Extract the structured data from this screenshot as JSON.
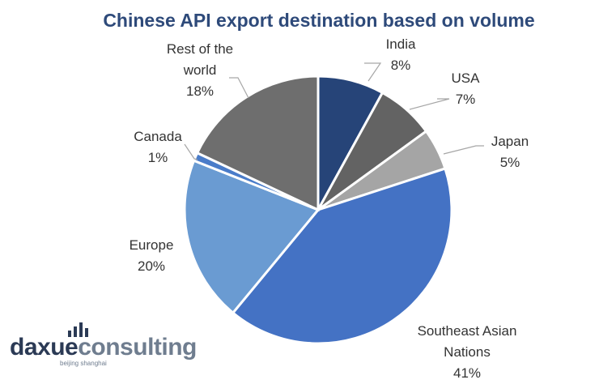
{
  "chart_data": {
    "type": "pie",
    "title": "Chinese API export destination based on volume",
    "slices": [
      {
        "label": [
          "India"
        ],
        "pct": "8%",
        "value": 8,
        "color": "#264478"
      },
      {
        "label": [
          "USA"
        ],
        "pct": "7%",
        "value": 7,
        "color": "#636363"
      },
      {
        "label": [
          "Japan"
        ],
        "pct": "5%",
        "value": 5,
        "color": "#a5a5a5"
      },
      {
        "label": [
          "Southeast Asian",
          "Nations"
        ],
        "pct": "41%",
        "value": 41,
        "color": "#4472c4"
      },
      {
        "label": [
          "Europe"
        ],
        "pct": "20%",
        "value": 20,
        "color": "#6a9bd2"
      },
      {
        "label": [
          "Canada"
        ],
        "pct": "1%",
        "value": 1,
        "color": "#4a7cc9"
      },
      {
        "label": [
          "Rest of the",
          "world"
        ],
        "pct": "18%",
        "value": 18,
        "color": "#6e6e6e"
      }
    ]
  },
  "logo": {
    "name_part1": "daxue",
    "name_part2": "consulting",
    "subtitle": "beijing shanghai",
    "icon": "bar-chart-icon"
  }
}
